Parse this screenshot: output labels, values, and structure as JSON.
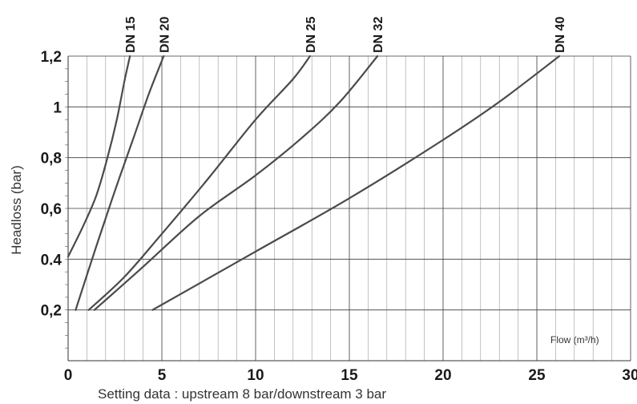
{
  "chart_data": {
    "type": "line",
    "ylabel": "Headloss (bar)",
    "xlabel": "Flow (m³/h)",
    "note": "Setting data : upstream 8 bar/downstream 3 bar",
    "xlim": [
      0,
      30
    ],
    "ylim": [
      0,
      1.2
    ],
    "x_ticks": [
      {
        "value": 0,
        "label": "0"
      },
      {
        "value": 5,
        "label": "5"
      },
      {
        "value": 10,
        "label": "10"
      },
      {
        "value": 15,
        "label": "15"
      },
      {
        "value": 20,
        "label": "20"
      },
      {
        "value": 25,
        "label": "25"
      },
      {
        "value": 30,
        "label": "30"
      }
    ],
    "y_ticks": [
      {
        "value": 0.2,
        "label": "0,2"
      },
      {
        "value": 0.4,
        "label": "0.4"
      },
      {
        "value": 0.6,
        "label": "0,6"
      },
      {
        "value": 0.8,
        "label": "0,8"
      },
      {
        "value": 1.0,
        "label": "1"
      },
      {
        "value": 1.2,
        "label": "1,2"
      }
    ],
    "grid": true,
    "series_color": "#4a4a4a",
    "series": [
      {
        "name": "DN 15",
        "points": [
          [
            0.0,
            0.41
          ],
          [
            0.8,
            0.53
          ],
          [
            1.5,
            0.65
          ],
          [
            2.1,
            0.8
          ],
          [
            2.6,
            0.95
          ],
          [
            3.0,
            1.1
          ],
          [
            3.3,
            1.2
          ]
        ]
      },
      {
        "name": "DN 20",
        "points": [
          [
            0.4,
            0.2
          ],
          [
            1.5,
            0.45
          ],
          [
            2.5,
            0.67
          ],
          [
            3.5,
            0.88
          ],
          [
            4.3,
            1.05
          ],
          [
            5.1,
            1.2
          ]
        ]
      },
      {
        "name": "DN 25",
        "points": [
          [
            1.1,
            0.2
          ],
          [
            3.0,
            0.33
          ],
          [
            5.0,
            0.5
          ],
          [
            7.5,
            0.72
          ],
          [
            10.0,
            0.95
          ],
          [
            12.0,
            1.11
          ],
          [
            12.9,
            1.2
          ]
        ]
      },
      {
        "name": "DN 32",
        "points": [
          [
            1.4,
            0.2
          ],
          [
            4.0,
            0.37
          ],
          [
            7.0,
            0.57
          ],
          [
            10.0,
            0.73
          ],
          [
            12.5,
            0.88
          ],
          [
            14.5,
            1.02
          ],
          [
            16.5,
            1.2
          ]
        ]
      },
      {
        "name": "DN 40",
        "points": [
          [
            4.5,
            0.2
          ],
          [
            10.0,
            0.43
          ],
          [
            15.0,
            0.64
          ],
          [
            20.0,
            0.87
          ],
          [
            23.0,
            1.02
          ],
          [
            26.2,
            1.2
          ]
        ]
      }
    ]
  }
}
